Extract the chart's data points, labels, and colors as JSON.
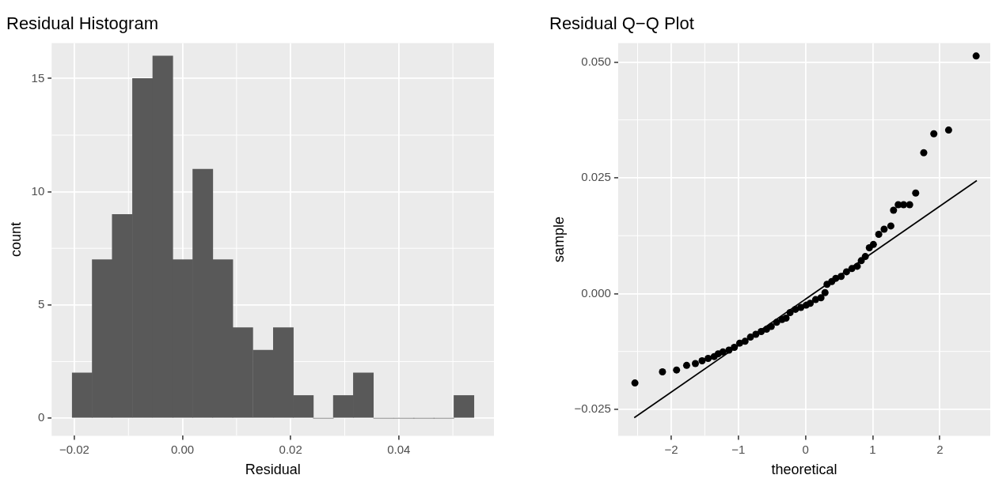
{
  "chart_data": [
    {
      "type": "histogram",
      "title": "Residual Histogram",
      "xlabel": "Residual",
      "ylabel": "count",
      "bins": [
        -0.0204,
        -0.0167,
        -0.013,
        -0.0093,
        -0.0055,
        -0.0018,
        0.0019,
        0.0056,
        0.0093,
        0.013,
        0.0168,
        0.0205,
        0.0242,
        0.0279,
        0.0316,
        0.0353,
        0.0391,
        0.0428,
        0.0465,
        0.0502,
        0.0539
      ],
      "values": [
        2,
        7,
        9,
        15,
        16,
        7,
        11,
        7,
        4,
        3,
        4,
        1,
        0,
        1,
        2,
        0,
        0,
        0,
        0,
        1
      ],
      "color": "#595959",
      "xlim": [
        -0.0242,
        0.0576
      ],
      "xticks": [
        {
          "value": -0.02,
          "label": "−0.02"
        },
        {
          "value": 0,
          "label": "0.00"
        },
        {
          "value": 0.02,
          "label": "0.02"
        },
        {
          "value": 0.04,
          "label": "0.04"
        }
      ],
      "ylim": [
        -0.78,
        16.57
      ],
      "yticks": [
        0,
        5,
        10,
        15
      ],
      "grid": true,
      "legend": false
    },
    {
      "type": "scatter",
      "title": "Residual Q−Q Plot",
      "xlabel": "theoretical",
      "ylabel": "sample",
      "series": [
        {
          "type": "scatter",
          "color": "#000000",
          "marker": "circle",
          "x": [
            -2.54,
            -2.13,
            -1.92,
            -1.77,
            -1.64,
            -1.54,
            -1.45,
            -1.36,
            -1.3,
            -1.23,
            -1.14,
            -1.06,
            -0.98,
            -0.9,
            -0.82,
            -0.74,
            -0.66,
            -0.58,
            -0.51,
            -0.43,
            -0.35,
            -0.29,
            -0.23,
            -0.15,
            -0.07,
            0.01,
            0.07,
            0.15,
            0.23,
            0.29,
            0.32,
            0.39,
            0.45,
            0.53,
            0.61,
            0.69,
            0.77,
            0.83,
            0.89,
            0.95,
            1.01,
            1.09,
            1.17,
            1.27,
            1.31,
            1.38,
            1.46,
            1.55,
            1.64,
            1.76,
            1.91,
            2.13,
            2.54
          ],
          "values": [
            -0.0193,
            -0.0169,
            -0.0165,
            -0.0155,
            -0.0151,
            -0.0145,
            -0.014,
            -0.0136,
            -0.013,
            -0.0126,
            -0.0122,
            -0.0116,
            -0.0107,
            -0.0103,
            -0.0094,
            -0.0088,
            -0.0082,
            -0.0077,
            -0.0071,
            -0.0062,
            -0.0056,
            -0.0053,
            -0.0041,
            -0.0034,
            -0.003,
            -0.0025,
            -0.0021,
            -0.0013,
            -0.0009,
            0.0002,
            0.002,
            0.0026,
            0.0033,
            0.0037,
            0.0047,
            0.0054,
            0.0059,
            0.0071,
            0.008,
            0.0099,
            0.0106,
            0.0128,
            0.0139,
            0.0146,
            0.018,
            0.0192,
            0.0192,
            0.0192,
            0.0217,
            0.0304,
            0.0345,
            0.0353,
            0.0513
          ]
        },
        {
          "type": "line",
          "color": "#000000",
          "marker": "none",
          "line_style": "solid",
          "x": [
            -2.55,
            2.55
          ],
          "values": [
            -0.0268,
            0.0244
          ]
        }
      ],
      "xlim": [
        -2.79,
        2.75
      ],
      "xticks": [
        {
          "value": -2,
          "label": "−2"
        },
        {
          "value": -1,
          "label": "−1"
        },
        0,
        1,
        2
      ],
      "ylim": [
        -0.0307,
        0.0541
      ],
      "yticks": [
        {
          "value": -0.025,
          "label": "−0.025"
        },
        {
          "value": 0,
          "label": "0.000"
        },
        {
          "value": 0.025,
          "label": "0.025"
        },
        {
          "value": 0.05,
          "label": "0.050"
        }
      ],
      "grid": true,
      "legend": false
    }
  ]
}
